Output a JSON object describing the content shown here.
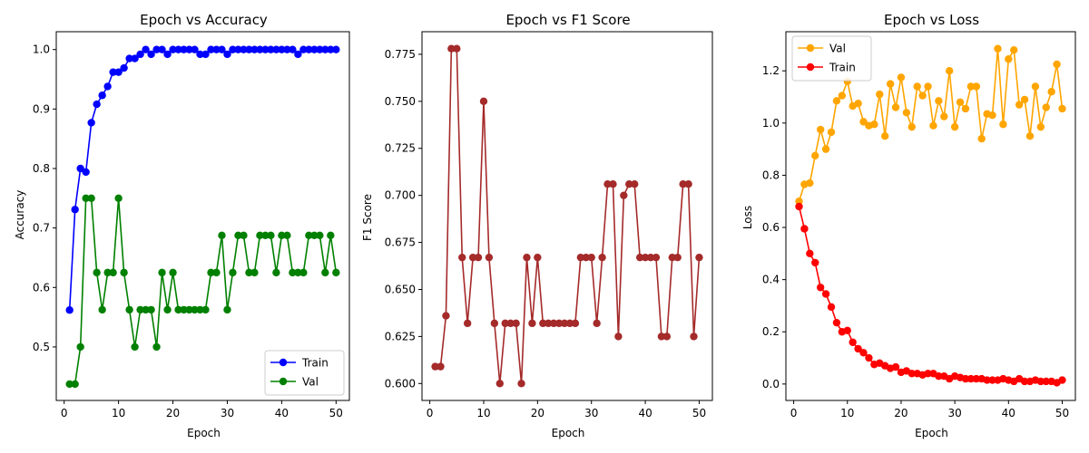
{
  "chart_data": [
    {
      "type": "line",
      "title": "Epoch vs Accuracy",
      "xlabel": "Epoch",
      "ylabel": "Accuracy",
      "xlim": [
        -1.45,
        52.45
      ],
      "ylim": [
        0.41,
        1.03
      ],
      "xticks": [
        0,
        10,
        20,
        30,
        40,
        50
      ],
      "yticks": [
        0.5,
        0.6,
        0.7,
        0.8,
        0.9,
        1.0
      ],
      "ytick_labels": [
        "0.5",
        "0.6",
        "0.7",
        "0.8",
        "0.9",
        "1.0"
      ],
      "legend": "lower right",
      "series": [
        {
          "name": "Train",
          "color": "#0000ff",
          "x": [
            1,
            2,
            3,
            4,
            5,
            6,
            7,
            8,
            9,
            10,
            11,
            12,
            13,
            14,
            15,
            16,
            17,
            18,
            19,
            20,
            21,
            22,
            23,
            24,
            25,
            26,
            27,
            28,
            29,
            30,
            31,
            32,
            33,
            34,
            35,
            36,
            37,
            38,
            39,
            40,
            41,
            42,
            43,
            44,
            45,
            46,
            47,
            48,
            49,
            50
          ],
          "values": [
            0.562,
            0.731,
            0.8,
            0.794,
            0.877,
            0.908,
            0.923,
            0.938,
            0.962,
            0.962,
            0.969,
            0.985,
            0.985,
            0.992,
            1.0,
            0.992,
            1.0,
            1.0,
            0.992,
            1.0,
            1.0,
            1.0,
            1.0,
            1.0,
            0.992,
            0.992,
            1.0,
            1.0,
            1.0,
            0.992,
            1.0,
            1.0,
            1.0,
            1.0,
            1.0,
            1.0,
            1.0,
            1.0,
            1.0,
            1.0,
            1.0,
            1.0,
            0.992,
            1.0,
            1.0,
            1.0,
            1.0,
            1.0,
            1.0,
            1.0
          ]
        },
        {
          "name": "Val",
          "color": "#008000",
          "x": [
            1,
            2,
            3,
            4,
            5,
            6,
            7,
            8,
            9,
            10,
            11,
            12,
            13,
            14,
            15,
            16,
            17,
            18,
            19,
            20,
            21,
            22,
            23,
            24,
            25,
            26,
            27,
            28,
            29,
            30,
            31,
            32,
            33,
            34,
            35,
            36,
            37,
            38,
            39,
            40,
            41,
            42,
            43,
            44,
            45,
            46,
            47,
            48,
            49,
            50
          ],
          "values": [
            0.4375,
            0.4375,
            0.5,
            0.75,
            0.75,
            0.625,
            0.5625,
            0.625,
            0.625,
            0.75,
            0.625,
            0.5625,
            0.5,
            0.5625,
            0.5625,
            0.5625,
            0.5,
            0.625,
            0.5625,
            0.625,
            0.5625,
            0.5625,
            0.5625,
            0.5625,
            0.5625,
            0.5625,
            0.625,
            0.625,
            0.6875,
            0.5625,
            0.625,
            0.6875,
            0.6875,
            0.625,
            0.625,
            0.6875,
            0.6875,
            0.6875,
            0.625,
            0.6875,
            0.6875,
            0.625,
            0.625,
            0.625,
            0.6875,
            0.6875,
            0.6875,
            0.625,
            0.6875,
            0.625
          ]
        }
      ]
    },
    {
      "type": "line",
      "title": "Epoch vs F1 Score",
      "xlabel": "Epoch",
      "ylabel": "F1 Score",
      "xlim": [
        -1.45,
        52.45
      ],
      "ylim": [
        0.591,
        0.787
      ],
      "xticks": [
        0,
        10,
        20,
        30,
        40,
        50
      ],
      "yticks": [
        0.6,
        0.625,
        0.65,
        0.675,
        0.7,
        0.725,
        0.75,
        0.775
      ],
      "ytick_labels": [
        "0.600",
        "0.625",
        "0.650",
        "0.675",
        "0.700",
        "0.725",
        "0.750",
        "0.775"
      ],
      "series": [
        {
          "color": "#a52a2a",
          "x": [
            1,
            2,
            3,
            4,
            5,
            6,
            7,
            8,
            9,
            10,
            11,
            12,
            13,
            14,
            15,
            16,
            17,
            18,
            19,
            20,
            21,
            22,
            23,
            24,
            25,
            26,
            27,
            28,
            29,
            30,
            31,
            32,
            33,
            34,
            35,
            36,
            37,
            38,
            39,
            40,
            41,
            42,
            43,
            44,
            45,
            46,
            47,
            48,
            49,
            50
          ],
          "values": [
            0.609,
            0.609,
            0.636,
            0.778,
            0.778,
            0.667,
            0.632,
            0.667,
            0.667,
            0.75,
            0.667,
            0.632,
            0.6,
            0.632,
            0.632,
            0.632,
            0.6,
            0.667,
            0.632,
            0.667,
            0.632,
            0.632,
            0.632,
            0.632,
            0.632,
            0.632,
            0.632,
            0.667,
            0.667,
            0.667,
            0.632,
            0.667,
            0.706,
            0.706,
            0.625,
            0.7,
            0.706,
            0.706,
            0.667,
            0.667,
            0.667,
            0.667,
            0.625,
            0.625,
            0.667,
            0.667,
            0.706,
            0.706,
            0.625,
            0.667
          ]
        }
      ]
    },
    {
      "type": "line",
      "title": "Epoch vs Loss",
      "xlabel": "Epoch",
      "ylabel": "Loss",
      "xlim": [
        -1.45,
        52.45
      ],
      "ylim": [
        -0.063,
        1.35
      ],
      "xticks": [
        0,
        10,
        20,
        30,
        40,
        50
      ],
      "yticks": [
        0.0,
        0.2,
        0.4,
        0.6,
        0.8,
        1.0,
        1.2
      ],
      "ytick_labels": [
        "0.0",
        "0.2",
        "0.4",
        "0.6",
        "0.8",
        "1.0",
        "1.2"
      ],
      "legend": "upper left",
      "series": [
        {
          "name": "Val",
          "color": "#ffa500",
          "x": [
            1,
            2,
            3,
            4,
            5,
            6,
            7,
            8,
            9,
            10,
            11,
            12,
            13,
            14,
            15,
            16,
            17,
            18,
            19,
            20,
            21,
            22,
            23,
            24,
            25,
            26,
            27,
            28,
            29,
            30,
            31,
            32,
            33,
            34,
            35,
            36,
            37,
            38,
            39,
            40,
            41,
            42,
            43,
            44,
            45,
            46,
            47,
            48,
            49,
            50
          ],
          "values": [
            0.7,
            0.765,
            0.77,
            0.875,
            0.975,
            0.9,
            0.965,
            1.085,
            1.105,
            1.16,
            1.065,
            1.075,
            1.005,
            0.99,
            0.995,
            1.11,
            0.95,
            1.15,
            1.06,
            1.175,
            1.04,
            0.985,
            1.14,
            1.105,
            1.14,
            0.99,
            1.085,
            1.025,
            1.2,
            0.985,
            1.08,
            1.055,
            1.14,
            1.14,
            0.94,
            1.035,
            1.03,
            1.285,
            0.995,
            1.245,
            1.28,
            1.07,
            1.09,
            0.95,
            1.14,
            0.985,
            1.06,
            1.12,
            1.225,
            1.055
          ]
        },
        {
          "name": "Train",
          "color": "#ff0000",
          "x": [
            1,
            2,
            3,
            4,
            5,
            6,
            7,
            8,
            9,
            10,
            11,
            12,
            13,
            14,
            15,
            16,
            17,
            18,
            19,
            20,
            21,
            22,
            23,
            24,
            25,
            26,
            27,
            28,
            29,
            30,
            31,
            32,
            33,
            34,
            35,
            36,
            37,
            38,
            39,
            40,
            41,
            42,
            43,
            44,
            45,
            46,
            47,
            48,
            49,
            50
          ],
          "values": [
            0.68,
            0.595,
            0.5,
            0.465,
            0.37,
            0.345,
            0.295,
            0.235,
            0.2,
            0.205,
            0.16,
            0.135,
            0.12,
            0.1,
            0.075,
            0.08,
            0.07,
            0.06,
            0.065,
            0.045,
            0.05,
            0.04,
            0.04,
            0.035,
            0.04,
            0.04,
            0.03,
            0.03,
            0.02,
            0.03,
            0.025,
            0.02,
            0.02,
            0.02,
            0.02,
            0.015,
            0.015,
            0.015,
            0.02,
            0.015,
            0.01,
            0.02,
            0.01,
            0.01,
            0.015,
            0.01,
            0.01,
            0.01,
            0.005,
            0.015
          ]
        }
      ]
    }
  ]
}
